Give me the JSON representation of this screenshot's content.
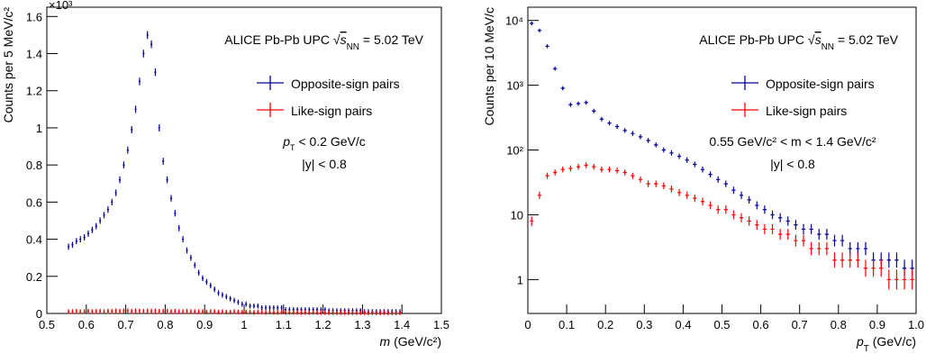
{
  "chart_data": [
    {
      "type": "scatter",
      "multiplier": "×10³",
      "y_label": "Counts per 5 MeV/c²",
      "x_label": [
        "m",
        " (GeV/c²)"
      ],
      "annotation": [
        "ALICE Pb-Pb UPC ",
        "√",
        "s",
        "NN",
        " = 5.02 TeV"
      ],
      "cuts": [
        [
          "p",
          "T",
          " < 0.2 GeV/c"
        ],
        [
          "|y| < 0.8"
        ]
      ],
      "legend": "upper right",
      "xlim": [
        0.5,
        1.5
      ],
      "xticks": [
        0.5,
        0.6,
        0.7,
        0.8,
        0.9,
        1,
        1.1,
        1.2,
        1.3,
        1.4,
        1.5
      ],
      "ylim": [
        0,
        1.65
      ],
      "yticks": [
        0,
        0.2,
        0.4,
        0.6,
        0.8,
        1,
        1.2,
        1.4,
        1.6
      ],
      "x": [
        0.555,
        0.565,
        0.575,
        0.585,
        0.595,
        0.605,
        0.615,
        0.625,
        0.635,
        0.645,
        0.655,
        0.665,
        0.675,
        0.685,
        0.695,
        0.705,
        0.715,
        0.725,
        0.735,
        0.745,
        0.755,
        0.765,
        0.775,
        0.785,
        0.795,
        0.805,
        0.815,
        0.825,
        0.835,
        0.845,
        0.855,
        0.865,
        0.875,
        0.885,
        0.895,
        0.905,
        0.915,
        0.925,
        0.935,
        0.945,
        0.955,
        0.965,
        0.975,
        0.985,
        0.995,
        1.005,
        1.015,
        1.025,
        1.035,
        1.045,
        1.055,
        1.065,
        1.075,
        1.085,
        1.095,
        1.105,
        1.115,
        1.125,
        1.135,
        1.145,
        1.155,
        1.165,
        1.175,
        1.185,
        1.195,
        1.205,
        1.215,
        1.225,
        1.235,
        1.245,
        1.255,
        1.265,
        1.275,
        1.285,
        1.295,
        1.305,
        1.315,
        1.325,
        1.335,
        1.345,
        1.355,
        1.365,
        1.375,
        1.385,
        1.395
      ],
      "series": [
        {
          "name": "Opposite-sign pairs",
          "color": "#000099",
          "values": [
            0.36,
            0.37,
            0.39,
            0.4,
            0.41,
            0.43,
            0.45,
            0.47,
            0.5,
            0.53,
            0.56,
            0.6,
            0.65,
            0.72,
            0.8,
            0.88,
            0.99,
            1.1,
            1.25,
            1.4,
            1.5,
            1.45,
            1.3,
            1.0,
            0.82,
            0.72,
            0.62,
            0.54,
            0.46,
            0.4,
            0.34,
            0.3,
            0.26,
            0.22,
            0.19,
            0.17,
            0.15,
            0.13,
            0.11,
            0.1,
            0.09,
            0.08,
            0.07,
            0.06,
            0.05,
            0.05,
            0.04,
            0.04,
            0.04,
            0.03,
            0.03,
            0.03,
            0.03,
            0.03,
            0.03,
            0.02,
            0.02,
            0.02,
            0.02,
            0.02,
            0.02,
            0.02,
            0.02,
            0.02,
            0.02,
            0.02,
            0.015,
            0.015,
            0.015,
            0.015,
            0.015,
            0.015,
            0.015,
            0.015,
            0.015,
            0.01,
            0.01,
            0.01,
            0.01,
            0.01,
            0.01,
            0.01,
            0.01,
            0.01,
            0.01
          ]
        },
        {
          "name": "Like-sign pairs",
          "color": "#ff0000",
          "values": [
            0.01,
            0.01,
            0.012,
            0.01,
            0.01,
            0.012,
            0.01,
            0.012,
            0.012,
            0.01,
            0.012,
            0.012,
            0.014,
            0.012,
            0.014,
            0.014,
            0.012,
            0.014,
            0.014,
            0.012,
            0.014,
            0.012,
            0.014,
            0.012,
            0.012,
            0.012,
            0.01,
            0.012,
            0.01,
            0.01,
            0.012,
            0.01,
            0.01,
            0.01,
            0.01,
            0.008,
            0.01,
            0.01,
            0.008,
            0.01,
            0.008,
            0.008,
            0.01,
            0.008,
            0.008,
            0.008,
            0.008,
            0.006,
            0.008,
            0.008,
            0.006,
            0.008,
            0.006,
            0.006,
            0.008,
            0.006,
            0.006,
            0.006,
            0.006,
            0.005,
            0.006,
            0.005,
            0.006,
            0.005,
            0.005,
            0.005,
            0.005,
            0.005,
            0.004,
            0.005,
            0.004,
            0.005,
            0.004,
            0.004,
            0.004,
            0.004,
            0.003,
            0.004,
            0.003,
            0.003,
            0.004,
            0.003,
            0.003,
            0.003,
            0.003
          ]
        }
      ]
    },
    {
      "type": "scatter",
      "y_label": "Counts per 10 MeV/c",
      "x_label": [
        "p",
        "T",
        " (GeV/c)"
      ],
      "annotation": [
        "ALICE Pb-Pb UPC ",
        "√",
        "s",
        "NN",
        " = 5.02 TeV"
      ],
      "cuts": [
        [
          "0.55 GeV/c² < m < 1.4 GeV/c²"
        ],
        [
          "|y| < 0.8"
        ]
      ],
      "legend": "upper right",
      "log_y": true,
      "xlim": [
        0,
        1
      ],
      "xticks": [
        0,
        0.1,
        0.2,
        0.3,
        0.4,
        0.5,
        0.6,
        0.7,
        0.8,
        0.9,
        {
          "value": 1,
          "label": "1.0"
        }
      ],
      "ylim": [
        0.3,
        16000
      ],
      "yticks": [
        1,
        10,
        {
          "value": 100,
          "label": "10²"
        },
        {
          "value": 1000,
          "label": "10³"
        },
        {
          "value": 10000,
          "label": "10⁴"
        }
      ],
      "x": [
        0.01,
        0.03,
        0.05,
        0.07,
        0.09,
        0.11,
        0.13,
        0.15,
        0.17,
        0.19,
        0.21,
        0.23,
        0.25,
        0.27,
        0.29,
        0.31,
        0.33,
        0.35,
        0.37,
        0.39,
        0.41,
        0.43,
        0.45,
        0.47,
        0.49,
        0.51,
        0.53,
        0.55,
        0.57,
        0.59,
        0.61,
        0.63,
        0.65,
        0.67,
        0.69,
        0.71,
        0.73,
        0.75,
        0.77,
        0.79,
        0.81,
        0.83,
        0.85,
        0.87,
        0.89,
        0.91,
        0.93,
        0.95,
        0.97,
        0.99
      ],
      "series": [
        {
          "name": "Opposite-sign pairs",
          "color": "#000099",
          "values": [
            9000,
            7000,
            4000,
            1800,
            900,
            500,
            520,
            540,
            400,
            300,
            260,
            230,
            200,
            180,
            160,
            140,
            120,
            100,
            90,
            80,
            70,
            60,
            50,
            42,
            35,
            30,
            24,
            20,
            17,
            14,
            12,
            10,
            9,
            8,
            7,
            6,
            6,
            5,
            5,
            4,
            4,
            3,
            3,
            3,
            2,
            2,
            2,
            2,
            1.5,
            1.5
          ]
        },
        {
          "name": "Like-sign pairs",
          "color": "#ff0000",
          "values": [
            8,
            20,
            40,
            45,
            50,
            52,
            55,
            58,
            55,
            50,
            50,
            48,
            45,
            40,
            35,
            30,
            30,
            28,
            25,
            22,
            20,
            18,
            16,
            14,
            12,
            12,
            10,
            9,
            8,
            7,
            6,
            6,
            5,
            5,
            4,
            4,
            3,
            3,
            3,
            2,
            2,
            2,
            2,
            1.5,
            1.5,
            1.5,
            1,
            1,
            1,
            1
          ]
        }
      ]
    }
  ]
}
